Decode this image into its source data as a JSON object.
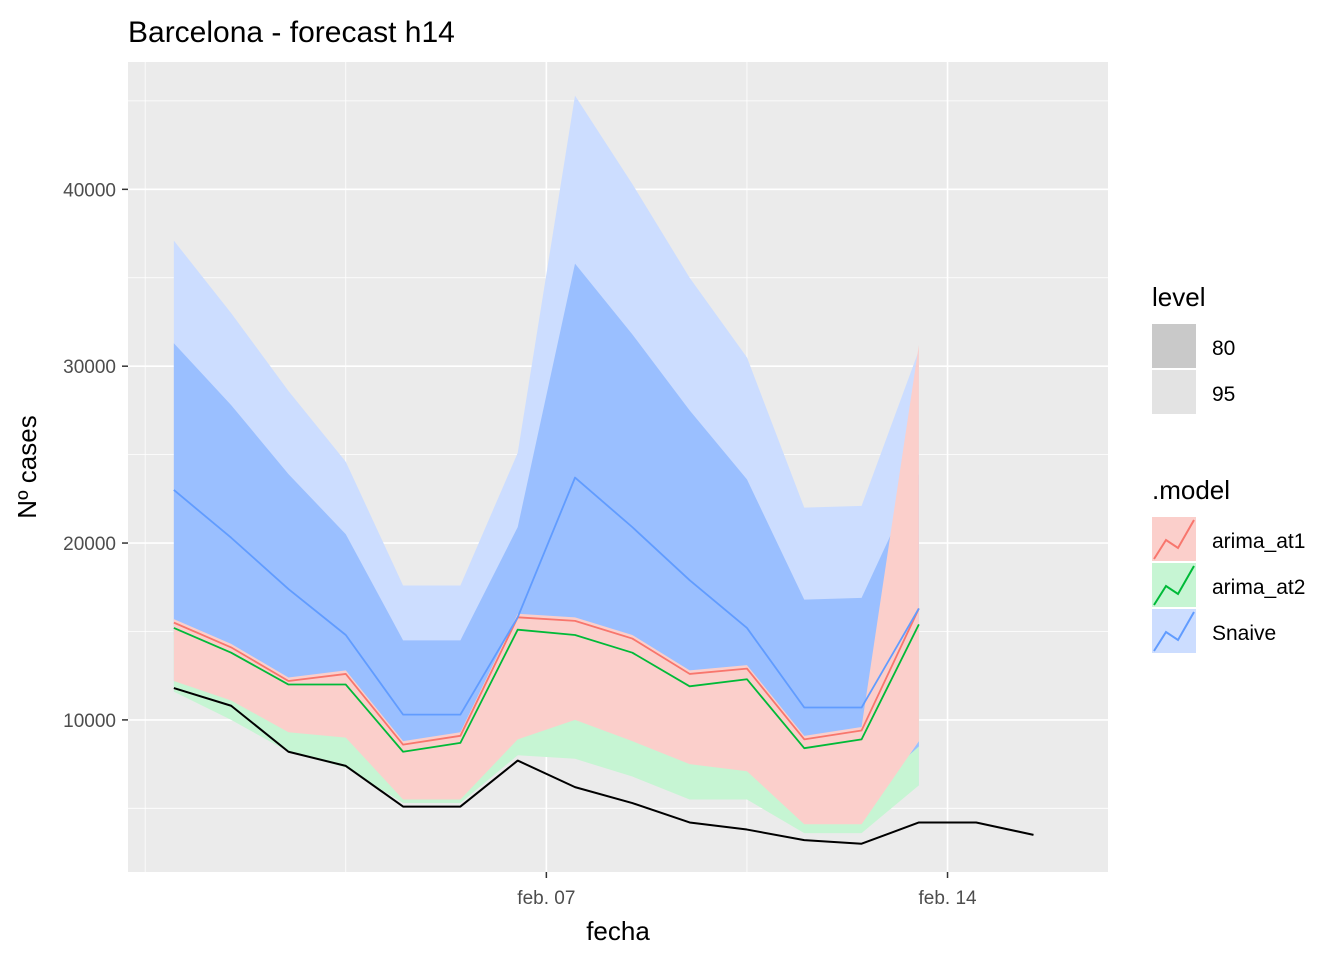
{
  "chart_data": {
    "type": "area",
    "title": "Barcelona - forecast h14",
    "xlabel": "fecha",
    "ylabel": "Nº cases",
    "x_ticks": [
      {
        "label": "feb. 07",
        "day": 7
      },
      {
        "label": "feb. 14",
        "day": 14
      }
    ],
    "y_ticks": [
      10000,
      20000,
      30000,
      40000
    ],
    "xlim": [
      -0.3,
      16.8
    ],
    "ylim": [
      1400,
      47200
    ],
    "grid": true,
    "legend_position": "right",
    "legend": {
      "level_title": "level",
      "levels": [
        "80",
        "95"
      ],
      "model_title": ".model",
      "models": [
        "arima_at1",
        "arima_at2",
        "Snaive"
      ]
    },
    "x": [
      0.5,
      1.5,
      2.5,
      3.5,
      4.5,
      5.5,
      6.5,
      7.5,
      8.5,
      9.5,
      10.5,
      11.5,
      12.5,
      13.5
    ],
    "actual": {
      "x": [
        0.5,
        1.5,
        2.5,
        3.5,
        4.5,
        5.5,
        6.5,
        7.5,
        8.5,
        9.5,
        10.5,
        11.5,
        12.5,
        13.5,
        14.5,
        15.5
      ],
      "values": [
        11800,
        10800,
        8200,
        7400,
        5100,
        5100,
        7700,
        6200,
        5300,
        4200,
        3800,
        3200,
        3000,
        4200,
        4200,
        3500
      ]
    },
    "series": [
      {
        "name": "arima_at1",
        "color": "#F8766D",
        "fill": "#FBCFCB",
        "values": [
          15500,
          14100,
          12200,
          12600,
          8600,
          9100,
          15800,
          15600,
          14600,
          12600,
          12900,
          8900,
          9400,
          16300
        ],
        "lo80": [
          12200,
          11100,
          9300,
          9000,
          5500,
          5500,
          8900,
          10000,
          8800,
          7500,
          7100,
          4100,
          4100,
          8800
        ],
        "hi80": [
          15700,
          14300,
          12400,
          12800,
          8800,
          9300,
          16000,
          15800,
          14800,
          12800,
          13100,
          9100,
          9600,
          31200
        ]
      },
      {
        "name": "arima_at2",
        "color": "#00BA38",
        "fill": "#C6F5D3",
        "values": [
          15200,
          13800,
          12000,
          12000,
          8200,
          8700,
          15100,
          14800,
          13800,
          11900,
          12300,
          8400,
          8900,
          15400
        ],
        "lo80": [
          12700,
          11500,
          9600,
          9400,
          5800,
          5800,
          9300,
          10200,
          8800,
          7400,
          7100,
          4200,
          4200,
          8800
        ],
        "hi80": [
          15400,
          14000,
          12200,
          12200,
          8400,
          8900,
          15300,
          15000,
          14000,
          12100,
          12500,
          8600,
          9100,
          15600
        ],
        "lo95": [
          11600,
          10000,
          8200,
          7300,
          5300,
          5300,
          8000,
          7800,
          6800,
          5500,
          5500,
          3600,
          3600,
          6300
        ],
        "hi95": [
          15300,
          13900,
          12100,
          12100,
          8300,
          8800,
          15200,
          14900,
          13900,
          12000,
          12400,
          8500,
          9000,
          15500
        ]
      },
      {
        "name": "Snaive",
        "color": "#619CFF",
        "fill": "#CCDDFF",
        "values": [
          23000,
          20300,
          17400,
          14800,
          10300,
          10300,
          15800,
          23700,
          20900,
          17900,
          15200,
          10700,
          10700,
          16300
        ],
        "lo80": [
          14800,
          13000,
          11400,
          9700,
          6700,
          6700,
          10200,
          13400,
          11800,
          10000,
          8300,
          5600,
          5600,
          8500
        ],
        "hi80": [
          31300,
          27800,
          23900,
          20500,
          14500,
          14500,
          20900,
          35800,
          31800,
          27500,
          23600,
          16800,
          16900,
          23900
        ],
        "lo95": [
          11600,
          10300,
          9300,
          7700,
          5500,
          5500,
          8000,
          9600,
          8700,
          7300,
          6100,
          4000,
          4000,
          6300
        ],
        "hi95": [
          37100,
          33000,
          28600,
          24600,
          17600,
          17600,
          25100,
          45300,
          40300,
          35000,
          30500,
          22000,
          22100,
          30900
        ]
      }
    ]
  }
}
